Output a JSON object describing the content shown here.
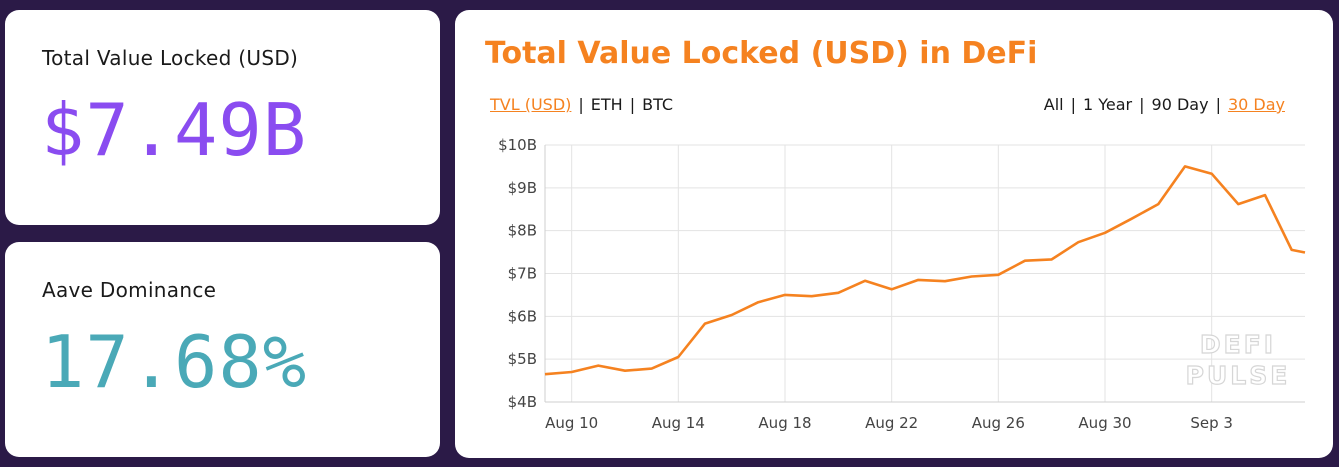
{
  "stats": {
    "tvl": {
      "label": "Total Value Locked (USD)",
      "value": "$7.49B",
      "color": "#8a4cf0"
    },
    "dominance": {
      "label": "Aave Dominance",
      "value": "17.68%",
      "color": "#4aa9b7"
    }
  },
  "chart_panel": {
    "title": "Total Value Locked (USD) in DeFi",
    "title_color": "#f58220",
    "accent": "#f58220",
    "currency_options": [
      "TVL (USD)",
      "ETH",
      "BTC"
    ],
    "currency_active": 0,
    "range_options": [
      "All",
      "1 Year",
      "90 Day",
      "30 Day"
    ],
    "range_active": 3,
    "watermark": [
      "DEFI",
      "PULSE"
    ]
  },
  "chart_data": {
    "type": "line",
    "title": "Total Value Locked (USD) in DeFi",
    "xlabel": "",
    "ylabel": "",
    "ylim": [
      4,
      10
    ],
    "y_unit": "B USD",
    "y_ticks": [
      4,
      5,
      6,
      7,
      8,
      9,
      10
    ],
    "y_tick_labels": [
      "$4B",
      "$5B",
      "$6B",
      "$7B",
      "$8B",
      "$9B",
      "$10B"
    ],
    "x_ticks": [
      "Aug 10",
      "Aug 14",
      "Aug 18",
      "Aug 22",
      "Aug 26",
      "Aug 30",
      "Sep 3"
    ],
    "x": [
      "Aug 9",
      "Aug 10",
      "Aug 11",
      "Aug 12",
      "Aug 13",
      "Aug 14",
      "Aug 15",
      "Aug 16",
      "Aug 17",
      "Aug 18",
      "Aug 19",
      "Aug 20",
      "Aug 21",
      "Aug 22",
      "Aug 23",
      "Aug 24",
      "Aug 25",
      "Aug 26",
      "Aug 27",
      "Aug 28",
      "Aug 29",
      "Aug 30",
      "Aug 31",
      "Sep 1",
      "Sep 2",
      "Sep 3",
      "Sep 4",
      "Sep 5",
      "Sep 6",
      "Sep 6.5"
    ],
    "series": [
      {
        "values": [
          4.65,
          4.7,
          4.85,
          4.73,
          4.78,
          5.05,
          5.83,
          6.03,
          6.33,
          6.5,
          6.47,
          6.55,
          6.83,
          6.63,
          6.85,
          6.82,
          6.93,
          6.97,
          7.3,
          7.33,
          7.73,
          7.95,
          8.28,
          8.62,
          9.5,
          9.33,
          8.62,
          8.83,
          7.55,
          7.49
        ],
        "color": "#f58220"
      }
    ],
    "grid": true
  }
}
